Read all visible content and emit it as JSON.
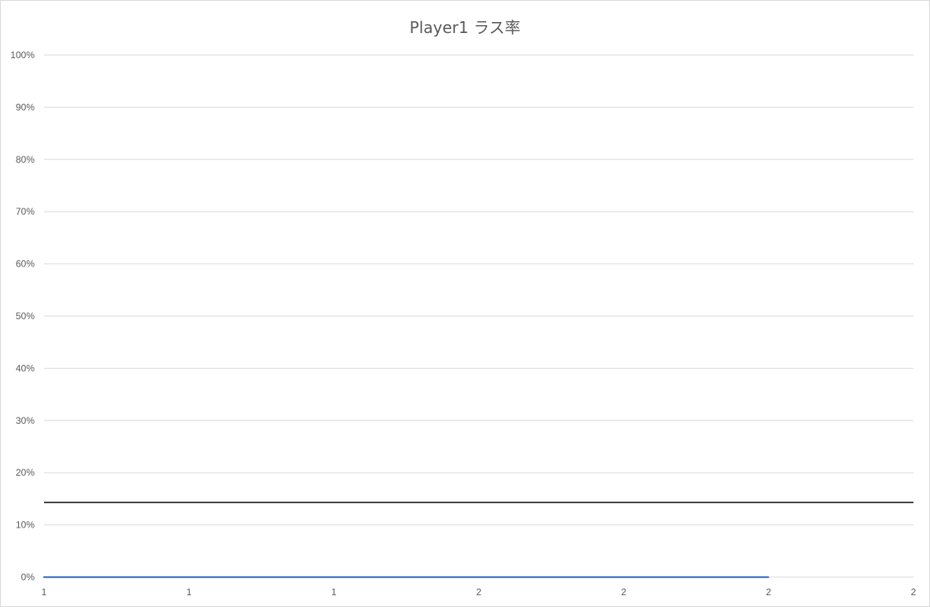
{
  "chart_data": {
    "type": "line",
    "title": "Player1 ラス率",
    "xlabel": "",
    "ylabel": "",
    "x_tick_labels": [
      "1",
      "1",
      "1",
      "2",
      "2",
      "2",
      "2"
    ],
    "y_tick_labels": [
      "0%",
      "10%",
      "20%",
      "30%",
      "40%",
      "50%",
      "60%",
      "70%",
      "80%",
      "90%",
      "100%"
    ],
    "ylim": [
      0,
      100
    ],
    "y_unit": "%",
    "grid": true,
    "legend": "none",
    "reference_line": {
      "value": 14.3,
      "color": "#404040"
    },
    "series": [
      {
        "color": "#4472c4",
        "x_fraction": [
          0,
          0.833
        ],
        "values": [
          0,
          0
        ]
      }
    ]
  }
}
